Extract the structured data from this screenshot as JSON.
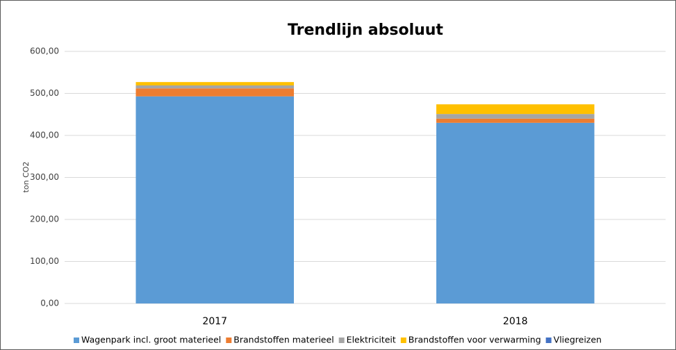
{
  "chart_data": {
    "type": "bar",
    "stacked": true,
    "title": "Trendlijn absoluut",
    "y_label": "ton CO2",
    "categories": [
      "2017",
      "2018"
    ],
    "series": [
      {
        "name": "Wagenpark incl. groot materieel",
        "color": "#5b9bd5",
        "values": [
          493,
          430
        ]
      },
      {
        "name": "Brandstoffen materieel",
        "color": "#ed7d31",
        "values": [
          19,
          10
        ]
      },
      {
        "name": "Elektriciteit",
        "color": "#a5a5a5",
        "values": [
          7,
          11
        ]
      },
      {
        "name": "Brandstoffen voor verwarming",
        "color": "#ffc000",
        "values": [
          8,
          23
        ]
      },
      {
        "name": "Vliegreizen",
        "color": "#4472c4",
        "values": [
          0,
          0
        ]
      }
    ],
    "ylim": [
      0,
      600
    ],
    "yticks": [
      {
        "value": 0,
        "label": "0,00"
      },
      {
        "value": 100,
        "label": "100,00"
      },
      {
        "value": 200,
        "label": "200,00"
      },
      {
        "value": 300,
        "label": "300,00"
      },
      {
        "value": 400,
        "label": "400,00"
      },
      {
        "value": 500,
        "label": "500,00"
      },
      {
        "value": 600,
        "label": "600,00"
      }
    ],
    "grid": true,
    "legend": "bottom"
  }
}
